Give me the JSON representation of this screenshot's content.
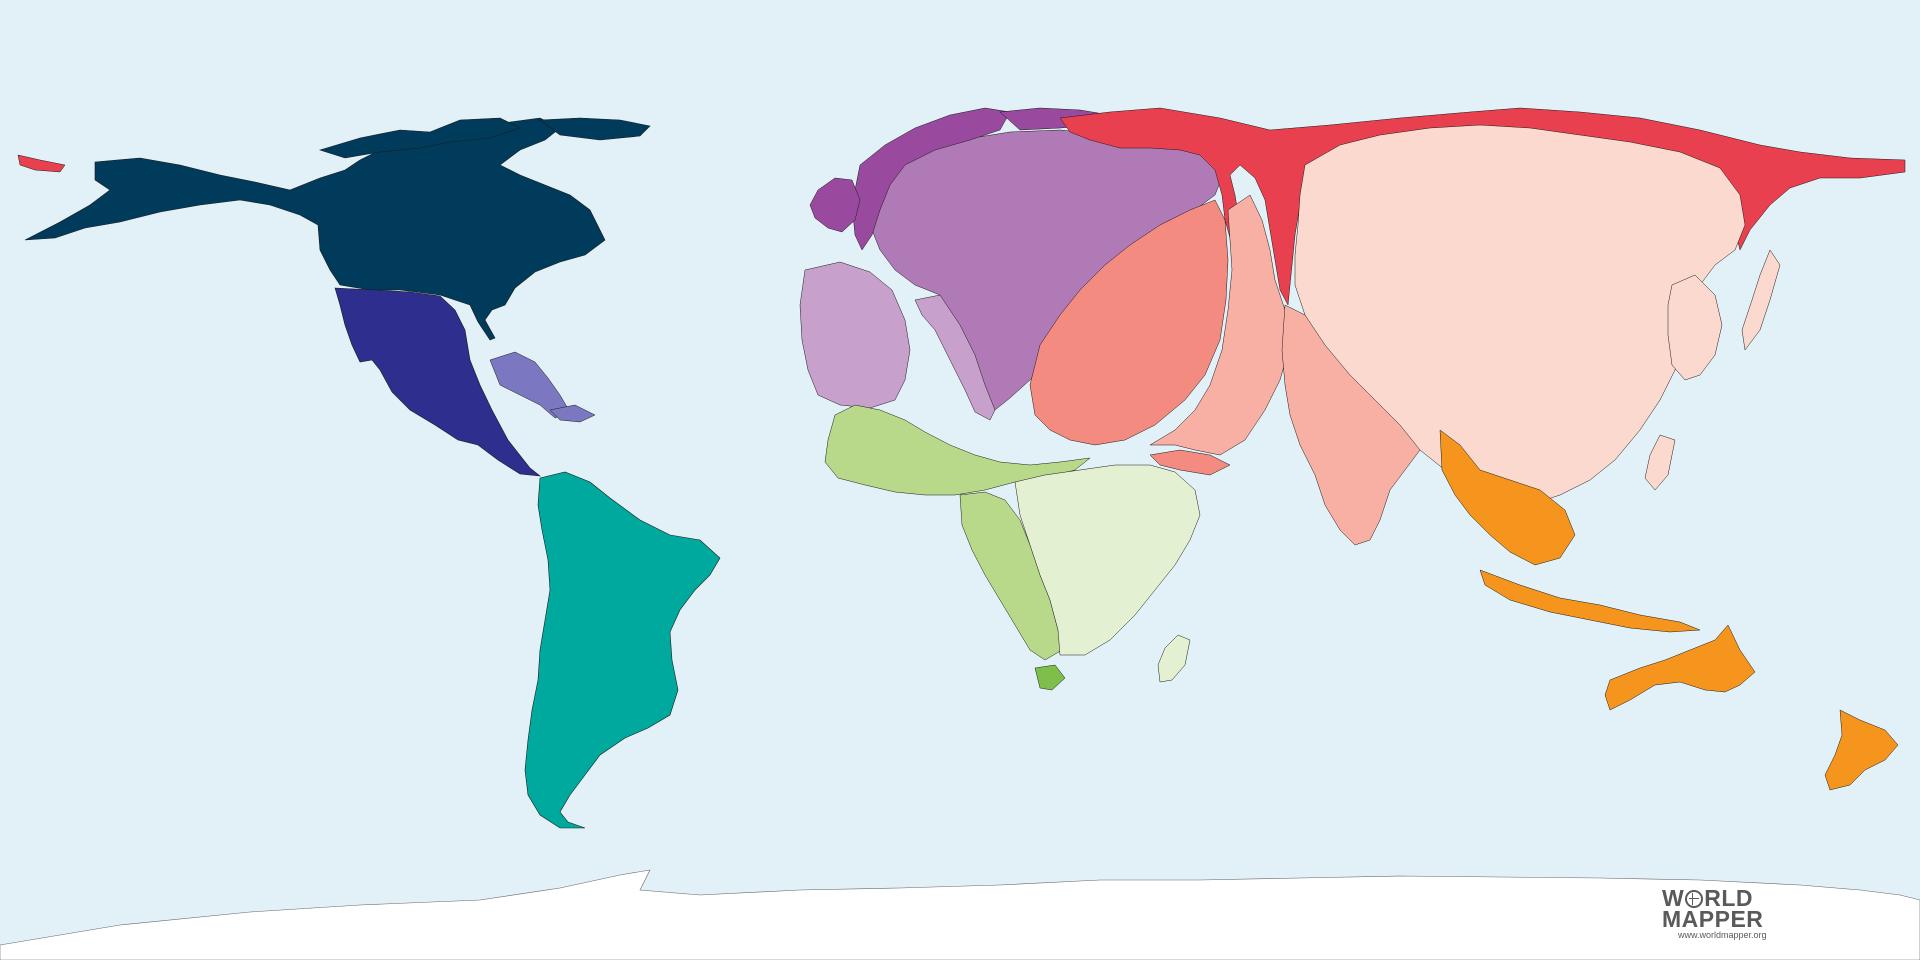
{
  "map": {
    "background_color": "#e2f1f8",
    "region_colors": {
      "north-america": "#003b5c",
      "central-america": "#2e2e8f",
      "caribbean": "#7b77c0",
      "south-america": "#00a99d",
      "western-europe": "#c7a0cc",
      "central-europe": "#b07ab6",
      "nordic-europe": "#9a4a9e",
      "russia-arctic": "#e8404e",
      "middle-east": "#f38b80",
      "south-asia": "#f8b0a4",
      "east-asia": "#fbd9cf",
      "north-africa": "#b8d98a",
      "sub-saharan-africa": "#e4f0d2",
      "southeast-asia-oceania": "#f5951d",
      "antarctica": "#ffffff"
    }
  },
  "logo": {
    "line1_prefix": "W",
    "line1_suffix": "RLD",
    "line2": "MAPPER",
    "url": "www.worldmapper.org"
  }
}
